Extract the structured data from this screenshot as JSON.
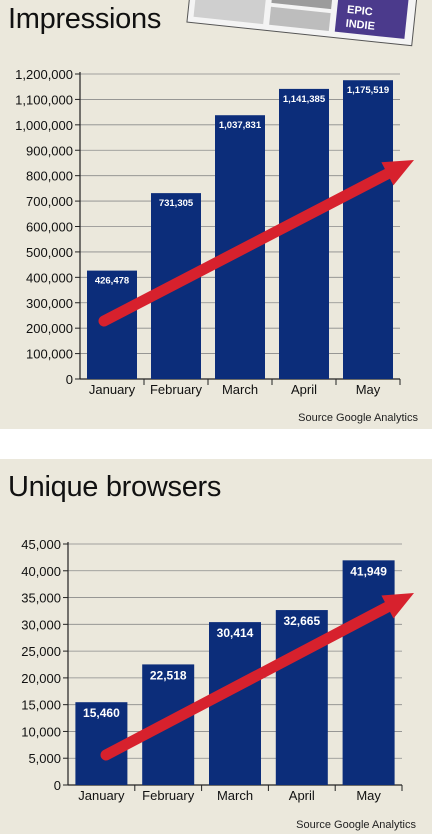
{
  "chart_data": [
    {
      "type": "bar",
      "title": "Impressions",
      "categories": [
        "January",
        "February",
        "March",
        "April",
        "May"
      ],
      "values": [
        426478,
        731305,
        1037831,
        1141385,
        1175519
      ],
      "value_labels": [
        "426,478",
        "731,305",
        "1,037,831",
        "1,141,385",
        "1,175,519"
      ],
      "yticks": [
        "0",
        "100,000",
        "200,000",
        "300,000",
        "400,000",
        "500,000",
        "600,000",
        "700,000",
        "800,000",
        "900,000",
        "1,000,000",
        "1,100,000",
        "1,200,000"
      ],
      "ylim": [
        0,
        1200000
      ],
      "grid": true,
      "source": "Source Google Analytics",
      "bar_color": "#0c2d7a",
      "trend_arrow_color": "#d7212d"
    },
    {
      "type": "bar",
      "title": "Unique browsers",
      "categories": [
        "January",
        "February",
        "March",
        "April",
        "May"
      ],
      "values": [
        15460,
        22518,
        30414,
        32665,
        41949
      ],
      "value_labels": [
        "15,460",
        "22,518",
        "30,414",
        "32,665",
        "41,949"
      ],
      "yticks": [
        "0",
        "5,000",
        "10,000",
        "15,000",
        "20,000",
        "25,000",
        "30,000",
        "35,000",
        "40,000",
        "45,000"
      ],
      "ylim": [
        0,
        45000
      ],
      "grid": true,
      "source": "Source Google Analytics",
      "bar_color": "#0c2d7a",
      "trend_arrow_color": "#d7212d"
    }
  ]
}
